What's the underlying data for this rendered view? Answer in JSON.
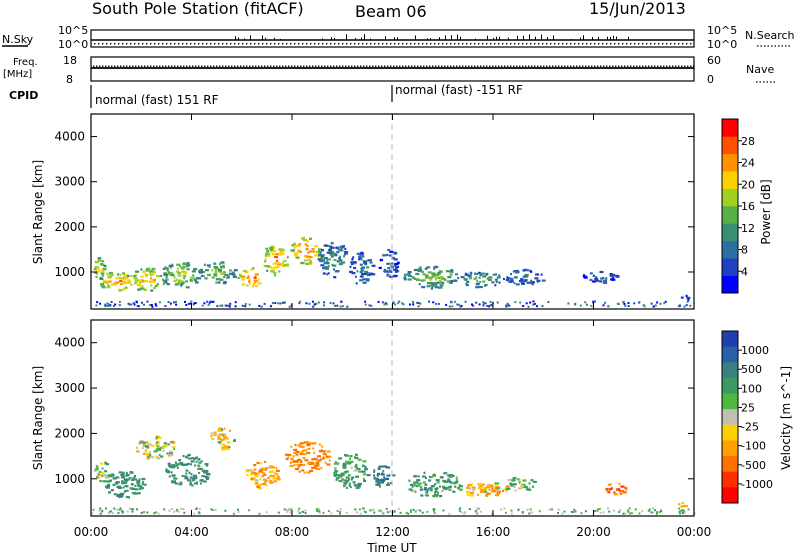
{
  "header": {
    "station": "South Pole Station (fitACF)",
    "beam": "Beam 06",
    "date": "15/Jun/2013"
  },
  "panels": {
    "nsky_label": "N.Sky",
    "nsky_ticks": [
      "10^5",
      "10^0"
    ],
    "nsearch_label": "N.Search",
    "nsearch_ticks": [
      "10^5",
      "10^0"
    ],
    "freq_label_line1": "Freq.",
    "freq_label_line2": "[MHz]",
    "freq_ticks": [
      "18",
      "8"
    ],
    "nave_label": "Nave",
    "nave_ticks": [
      "60",
      "0"
    ],
    "cpid_label": "CPID",
    "cpid_segments": [
      {
        "start_hour": 0,
        "label": "normal (fast) 151 RF"
      },
      {
        "start_hour": 12,
        "label": "normal (fast) -151 RF"
      }
    ]
  },
  "axes": {
    "x_ticks": [
      "00:00",
      "04:00",
      "08:00",
      "12:00",
      "16:00",
      "20:00",
      "00:00"
    ],
    "x_label": "Time UT",
    "y_ticks": [
      "1000",
      "2000",
      "3000",
      "4000"
    ],
    "y_label": "Slant Range [km]",
    "y_range_km": [
      180,
      4500
    ]
  },
  "power_scale": {
    "label": "Power [dB]",
    "ticks": [
      "4",
      "8",
      "12",
      "16",
      "20",
      "24",
      "28"
    ],
    "colors": [
      "#0000ff",
      "#2040c0",
      "#2c6fa0",
      "#3a9070",
      "#58b048",
      "#a0d020",
      "#ffd000",
      "#ff9000",
      "#ff5000",
      "#ff0000"
    ]
  },
  "velocity_scale": {
    "label": "Velocity [m s^-1]",
    "ticks": [
      "1000",
      "500",
      "100",
      "25",
      "-25",
      "-100",
      "-500",
      "-1000"
    ],
    "colors": [
      "#1f3fb0",
      "#2a60a8",
      "#3a8080",
      "#3a9a60",
      "#50b840",
      "#c0c0b0",
      "#ffd000",
      "#ffa000",
      "#ff7000",
      "#ff3000",
      "#ff0000"
    ]
  },
  "chart_data": {
    "type": "heatmap",
    "x_unit": "hours UT",
    "x_range": [
      0,
      24
    ],
    "ylim": [
      180,
      4500
    ],
    "plots": [
      {
        "name": "Power",
        "blobs": [
          {
            "t": 0.3,
            "range_km": 1100,
            "dt": 0.5,
            "dr": 500,
            "value_db": 18
          },
          {
            "t": 1.0,
            "range_km": 800,
            "dt": 1.4,
            "dr": 450,
            "value_db": 22
          },
          {
            "t": 2.2,
            "range_km": 850,
            "dt": 1.6,
            "dr": 500,
            "value_db": 20
          },
          {
            "t": 3.5,
            "range_km": 950,
            "dt": 1.5,
            "dr": 600,
            "value_db": 16
          },
          {
            "t": 5.0,
            "range_km": 1000,
            "dt": 1.5,
            "dr": 500,
            "value_db": 14
          },
          {
            "t": 6.3,
            "range_km": 900,
            "dt": 1.0,
            "dr": 450,
            "value_db": 24
          },
          {
            "t": 7.3,
            "range_km": 1300,
            "dt": 1.0,
            "dr": 700,
            "value_db": 22
          },
          {
            "t": 8.5,
            "range_km": 1500,
            "dt": 1.2,
            "dr": 600,
            "value_db": 24
          },
          {
            "t": 9.6,
            "range_km": 1300,
            "dt": 1.2,
            "dr": 800,
            "value_db": 10
          },
          {
            "t": 10.7,
            "range_km": 1100,
            "dt": 1.0,
            "dr": 700,
            "value_db": 8
          },
          {
            "t": 11.8,
            "range_km": 1200,
            "dt": 0.8,
            "dr": 700,
            "value_db": 6
          },
          {
            "t": 13.5,
            "range_km": 900,
            "dt": 2.2,
            "dr": 500,
            "value_db": 14
          },
          {
            "t": 15.5,
            "range_km": 850,
            "dt": 2.0,
            "dr": 350,
            "value_db": 12
          },
          {
            "t": 17.2,
            "range_km": 900,
            "dt": 1.6,
            "dr": 350,
            "value_db": 8
          },
          {
            "t": 20.2,
            "range_km": 900,
            "dt": 1.4,
            "dr": 250,
            "value_db": 6
          },
          {
            "t": 23.6,
            "range_km": 450,
            "dt": 0.5,
            "dr": 150,
            "value_db": 6
          }
        ]
      },
      {
        "name": "Velocity",
        "blobs": [
          {
            "t": 0.4,
            "range_km": 1200,
            "dt": 0.6,
            "dr": 500,
            "value_ms": 100
          },
          {
            "t": 1.3,
            "range_km": 900,
            "dt": 1.6,
            "dr": 600,
            "value_ms": 300
          },
          {
            "t": 2.5,
            "range_km": 1700,
            "dt": 1.6,
            "dr": 500,
            "value_ms": 0
          },
          {
            "t": 3.8,
            "range_km": 1200,
            "dt": 1.8,
            "dr": 700,
            "value_ms": 300
          },
          {
            "t": 5.2,
            "range_km": 1900,
            "dt": 1.0,
            "dr": 500,
            "value_ms": 0
          },
          {
            "t": 6.8,
            "range_km": 1100,
            "dt": 1.4,
            "dr": 600,
            "value_ms": -200
          },
          {
            "t": 8.6,
            "range_km": 1500,
            "dt": 1.8,
            "dr": 700,
            "value_ms": -300
          },
          {
            "t": 10.3,
            "range_km": 1200,
            "dt": 1.4,
            "dr": 800,
            "value_ms": 200
          },
          {
            "t": 11.6,
            "range_km": 1100,
            "dt": 0.8,
            "dr": 600,
            "value_ms": 400
          },
          {
            "t": 13.6,
            "range_km": 900,
            "dt": 2.2,
            "dr": 550,
            "value_ms": 200
          },
          {
            "t": 15.6,
            "range_km": 800,
            "dt": 2.0,
            "dr": 350,
            "value_ms": -150
          },
          {
            "t": 17.0,
            "range_km": 900,
            "dt": 1.4,
            "dr": 300,
            "value_ms": 100
          },
          {
            "t": 20.8,
            "range_km": 800,
            "dt": 1.0,
            "dr": 250,
            "value_ms": -400
          },
          {
            "t": 23.6,
            "range_km": 450,
            "dt": 0.5,
            "dr": 150,
            "value_ms": -100
          }
        ]
      }
    ]
  }
}
